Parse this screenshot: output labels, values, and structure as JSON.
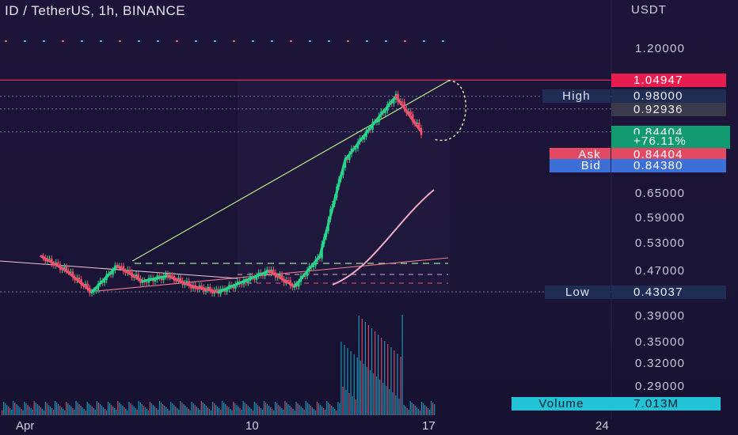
{
  "header": {
    "title": "ID / TetherUS, 1h, BINANCE",
    "currency": "USDT"
  },
  "price_axis": {
    "ticks": [
      "1.20000",
      "0.65000",
      "0.59000",
      "0.53000",
      "0.47000",
      "0.39000",
      "0.35000",
      "0.32000",
      "0.29000"
    ]
  },
  "price_tags": {
    "upper_line": "1.04947",
    "high_label": "High",
    "high_value": "0.98000",
    "prev_value": "0.92936",
    "last_price": "0.84404",
    "last_change": "+76.11%",
    "ask_label": "Ask",
    "ask_value": "0.84404",
    "bid_label": "Bid",
    "bid_value": "0.84380",
    "low_label": "Low",
    "low_value": "0.43037",
    "volume_label": "Volume",
    "volume_value": "7.013M"
  },
  "time_axis": {
    "labels": [
      "Apr",
      "10",
      "17",
      "24"
    ]
  },
  "colors": {
    "background": "#1b1437",
    "bull": "#26d48a",
    "bear": "#f0506e",
    "trendline": "#b8e986",
    "upper_line": "#e2245a",
    "ma": "#f1a7c4",
    "tag_blue": "#2a3a6a",
    "tag_green": "#1aa37a",
    "tag_cyan": "#20c4d8"
  },
  "chart_data": {
    "type": "candlestick",
    "title": "ID / TetherUS, 1h, BINANCE",
    "y_unit": "USDT",
    "x_range": [
      "Apr",
      "24"
    ],
    "price_path": [
      {
        "date": "Apr 2",
        "price": 0.5
      },
      {
        "date": "Apr 3",
        "price": 0.47
      },
      {
        "date": "Apr 4",
        "price": 0.43
      },
      {
        "date": "Apr 5",
        "price": 0.48
      },
      {
        "date": "Apr 6",
        "price": 0.45
      },
      {
        "date": "Apr 7",
        "price": 0.46
      },
      {
        "date": "Apr 8",
        "price": 0.44
      },
      {
        "date": "Apr 9",
        "price": 0.43
      },
      {
        "date": "Apr 10",
        "price": 0.45
      },
      {
        "date": "Apr 11",
        "price": 0.47
      },
      {
        "date": "Apr 12",
        "price": 0.44
      },
      {
        "date": "Apr 13",
        "price": 0.5
      },
      {
        "date": "Apr 14",
        "price": 0.75
      },
      {
        "date": "Apr 15",
        "price": 0.86
      },
      {
        "date": "Apr 16",
        "price": 0.98
      },
      {
        "date": "Apr 17",
        "price": 0.84404
      }
    ],
    "levels": {
      "high": 0.98,
      "low": 0.43037,
      "last": 0.84404,
      "upper_line": 1.04947
    },
    "volume_last": "7.013M"
  }
}
